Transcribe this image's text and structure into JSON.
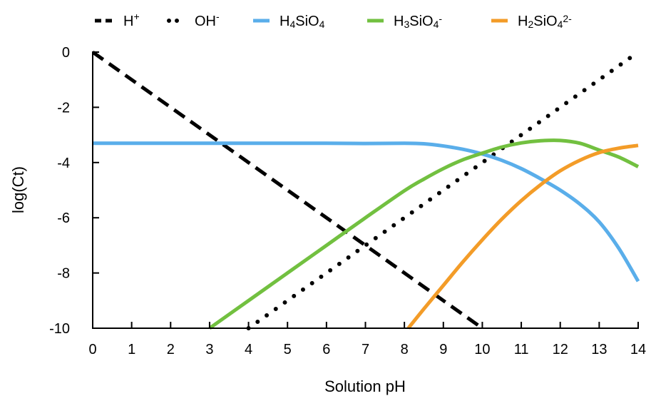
{
  "chart_data": {
    "type": "line",
    "title": "",
    "xlabel": "Solution pH",
    "ylabel": "log(Ct)",
    "xlim": [
      0,
      14
    ],
    "ylim": [
      -10,
      0
    ],
    "xticks": [
      "0",
      "1",
      "2",
      "3",
      "4",
      "5",
      "6",
      "7",
      "8",
      "9",
      "10",
      "11",
      "12",
      "13",
      "14"
    ],
    "yticks": [
      "0",
      "-2",
      "-4",
      "-6",
      "-8",
      "-10"
    ],
    "grid": false,
    "legend_position": "top",
    "series": [
      {
        "name": "H+",
        "legend": {
          "base": "H",
          "sup": "+"
        },
        "color": "#000000",
        "style": "dashed",
        "x": [
          0,
          2,
          4,
          6,
          8,
          10
        ],
        "y": [
          0,
          -2,
          -4,
          -6,
          -8,
          -10
        ]
      },
      {
        "name": "OH-",
        "legend": {
          "base": "OH",
          "sup": "-"
        },
        "color": "#000000",
        "style": "dotted",
        "x": [
          4,
          6,
          8,
          10,
          12,
          14
        ],
        "y": [
          -10,
          -8,
          -6,
          -4,
          -2,
          0
        ]
      },
      {
        "name": "H4SiO4",
        "legend": {
          "parts": [
            [
              "H",
              ""
            ],
            [
              "4",
              "sub"
            ],
            [
              "SiO",
              ""
            ],
            [
              "4",
              "sub"
            ]
          ]
        },
        "color": "#5aaeea",
        "style": "solid",
        "x": [
          0,
          2,
          4,
          6,
          7,
          8,
          8.5,
          9,
          9.5,
          10,
          10.5,
          11,
          11.5,
          12,
          12.5,
          13,
          13.5,
          14
        ],
        "y": [
          -3.3,
          -3.3,
          -3.3,
          -3.3,
          -3.31,
          -3.3,
          -3.32,
          -3.4,
          -3.52,
          -3.69,
          -3.92,
          -4.22,
          -4.59,
          -5.0,
          -5.5,
          -6.15,
          -7.1,
          -8.3
        ]
      },
      {
        "name": "H3SiO4-",
        "legend": {
          "parts": [
            [
              "H",
              ""
            ],
            [
              "3",
              "sub"
            ],
            [
              "SiO",
              ""
            ],
            [
              "4",
              "sub"
            ],
            [
              "-",
              "sup"
            ]
          ]
        },
        "color": "#72c040",
        "style": "solid",
        "x": [
          3,
          4,
          5,
          6,
          7,
          8,
          8.5,
          9,
          9.5,
          10,
          10.5,
          11,
          11.5,
          12,
          12.5,
          13,
          13.5,
          14
        ],
        "y": [
          -10,
          -9.0,
          -8.0,
          -7.0,
          -6.0,
          -5.02,
          -4.6,
          -4.22,
          -3.9,
          -3.66,
          -3.44,
          -3.29,
          -3.21,
          -3.2,
          -3.3,
          -3.55,
          -3.8,
          -4.15
        ]
      },
      {
        "name": "H2SiO42-",
        "legend": {
          "parts": [
            [
              "H",
              ""
            ],
            [
              "2",
              "sub"
            ],
            [
              "SiO",
              ""
            ],
            [
              "4",
              "sub"
            ],
            [
              "2-",
              "sup"
            ]
          ]
        },
        "color": "#f39c28",
        "style": "solid",
        "x": [
          8.1,
          8.5,
          9,
          9.5,
          10,
          10.5,
          11,
          11.5,
          12,
          12.5,
          13,
          13.5,
          14
        ],
        "y": [
          -10,
          -9.3,
          -8.45,
          -7.6,
          -6.8,
          -6.05,
          -5.38,
          -4.8,
          -4.3,
          -3.92,
          -3.64,
          -3.48,
          -3.38
        ]
      }
    ]
  }
}
